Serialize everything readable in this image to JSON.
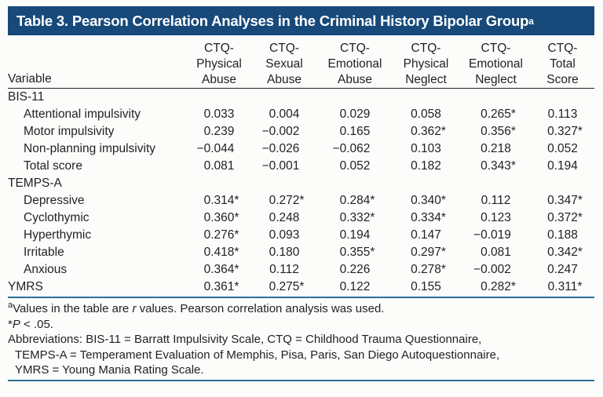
{
  "colors": {
    "title_bar_bg": "#17497A",
    "title_text": "#FFFFFF",
    "body_text": "#231F20",
    "rule_blue": "#2C6E96",
    "page_bg": "#FCFCFA"
  },
  "table": {
    "title": "Table 3. Pearson Correlation Analyses in the Criminal History Bipolar Group",
    "title_superscript": "a",
    "variable_header": "Variable",
    "column_headers": [
      {
        "lines": [
          "CTQ-",
          "Physical",
          "Abuse"
        ]
      },
      {
        "lines": [
          "CTQ-",
          "Sexual",
          "Abuse"
        ]
      },
      {
        "lines": [
          "CTQ-",
          "Emotional",
          "Abuse"
        ]
      },
      {
        "lines": [
          "CTQ-",
          "Physical",
          "Neglect"
        ]
      },
      {
        "lines": [
          "CTQ-",
          "Emotional",
          "Neglect"
        ]
      },
      {
        "lines": [
          "CTQ-",
          "Total",
          "Score"
        ]
      }
    ],
    "rows": [
      {
        "label": "BIS-11",
        "section": true,
        "indent": false,
        "values": [
          "",
          "",
          "",
          "",
          "",
          ""
        ]
      },
      {
        "label": "Attentional impulsivity",
        "section": false,
        "indent": true,
        "values": [
          "0.033",
          "0.004",
          "0.029",
          "0.058",
          "0.265*",
          "0.113"
        ]
      },
      {
        "label": "Motor impulsivity",
        "section": false,
        "indent": true,
        "values": [
          "0.239",
          "−0.002",
          "0.165",
          "0.362*",
          "0.356*",
          "0.327*"
        ]
      },
      {
        "label": "Non-planning impulsivity",
        "section": false,
        "indent": true,
        "values": [
          "−0.044",
          "−0.026",
          "−0.062",
          "0.103",
          "0.218",
          "0.052"
        ]
      },
      {
        "label": "Total score",
        "section": false,
        "indent": true,
        "values": [
          "0.081",
          "−0.001",
          "0.052",
          "0.182",
          "0.343*",
          "0.194"
        ]
      },
      {
        "label": "TEMPS-A",
        "section": true,
        "indent": false,
        "values": [
          "",
          "",
          "",
          "",
          "",
          ""
        ]
      },
      {
        "label": "Depressive",
        "section": false,
        "indent": true,
        "values": [
          "0.314*",
          "0.272*",
          "0.284*",
          "0.340*",
          "0.112",
          "0.347*"
        ]
      },
      {
        "label": "Cyclothymic",
        "section": false,
        "indent": true,
        "values": [
          "0.360*",
          "0.248",
          "0.332*",
          "0.334*",
          "0.123",
          "0.372*"
        ]
      },
      {
        "label": "Hyperthymic",
        "section": false,
        "indent": true,
        "values": [
          "0.276*",
          "0.093",
          "0.194",
          "0.147",
          "−0.019",
          "0.188"
        ]
      },
      {
        "label": "Irritable",
        "section": false,
        "indent": true,
        "values": [
          "0.418*",
          "0.180",
          "0.355*",
          "0.297*",
          "0.081",
          "0.342*"
        ]
      },
      {
        "label": "Anxious",
        "section": false,
        "indent": true,
        "values": [
          "0.364*",
          "0.112",
          "0.226",
          "0.278*",
          "−0.002",
          "0.247"
        ]
      },
      {
        "label": "YMRS",
        "section": false,
        "indent": false,
        "values": [
          "0.361*",
          "0.275*",
          "0.122",
          "0.155",
          "0.282*",
          "0.311*"
        ]
      }
    ],
    "footnotes": [
      {
        "indent": false,
        "segments": [
          {
            "text": "a",
            "sup": true
          },
          {
            "text": "Values in the table are "
          },
          {
            "text": "r",
            "italic": true
          },
          {
            "text": " values. Pearson correlation analysis was used."
          }
        ]
      },
      {
        "indent": false,
        "segments": [
          {
            "text": "*"
          },
          {
            "text": "P",
            "italic": true
          },
          {
            "text": " < .05."
          }
        ]
      },
      {
        "indent": false,
        "segments": [
          {
            "text": "Abbreviations: BIS-11 = Barratt Impulsivity Scale, CTQ = Childhood Trauma Questionnaire,"
          }
        ]
      },
      {
        "indent": true,
        "segments": [
          {
            "text": "TEMPS-A = Temperament Evaluation of Memphis, Pisa, Paris, San Diego Autoquestionnaire,"
          }
        ]
      },
      {
        "indent": true,
        "segments": [
          {
            "text": "YMRS = Young Mania Rating Scale."
          }
        ]
      }
    ]
  }
}
